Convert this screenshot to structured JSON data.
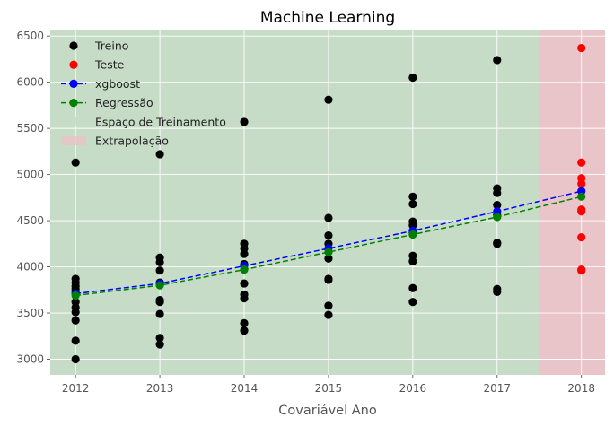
{
  "chart_data": {
    "type": "scatter",
    "title": "Machine Learning",
    "xlabel": "Covariável Ano",
    "ylabel": "",
    "xlim": [
      2011.7,
      2018.28
    ],
    "ylim": [
      2830,
      6560
    ],
    "xticks": [
      2012,
      2013,
      2014,
      2015,
      2016,
      2017,
      2018
    ],
    "yticks": [
      3000,
      3500,
      4000,
      4500,
      5000,
      5500,
      6000,
      6500
    ],
    "grid": true,
    "legend_position": "top-left",
    "colors": {
      "train": "#000000",
      "test": "#ff0000",
      "xgboost": "#0000ff",
      "regression": "#008000",
      "train_region": "#c6dcc6",
      "extrapolation_region": "#e9c4c8",
      "plot_background": "#e5e5e5",
      "grid": "#ffffff"
    },
    "regions": [
      {
        "name": "Espaço de Treinamento",
        "x_from": 2011.7,
        "x_to": 2017.5,
        "color": "#c6dcc6"
      },
      {
        "name": "Extrapolação",
        "x_from": 2017.5,
        "x_to": 2018.28,
        "color": "#e9c4c8"
      }
    ],
    "series": [
      {
        "name": "Treino",
        "style": "points",
        "color": "#000000",
        "points": [
          [
            2012,
            5130
          ],
          [
            2012,
            3870
          ],
          [
            2012,
            3830
          ],
          [
            2012,
            3790
          ],
          [
            2012,
            3760
          ],
          [
            2012,
            3730
          ],
          [
            2012,
            3620
          ],
          [
            2012,
            3560
          ],
          [
            2012,
            3510
          ],
          [
            2012,
            3420
          ],
          [
            2012,
            3200
          ],
          [
            2012,
            3000
          ],
          [
            2013,
            5220
          ],
          [
            2013,
            4100
          ],
          [
            2013,
            4050
          ],
          [
            2013,
            3960
          ],
          [
            2013,
            3830
          ],
          [
            2013,
            3640
          ],
          [
            2013,
            3620
          ],
          [
            2013,
            3490
          ],
          [
            2013,
            3230
          ],
          [
            2013,
            3160
          ],
          [
            2014,
            5570
          ],
          [
            2014,
            4250
          ],
          [
            2014,
            4200
          ],
          [
            2014,
            4140
          ],
          [
            2014,
            4030
          ],
          [
            2014,
            3820
          ],
          [
            2014,
            3700
          ],
          [
            2014,
            3660
          ],
          [
            2014,
            3390
          ],
          [
            2014,
            3310
          ],
          [
            2015,
            5810
          ],
          [
            2015,
            4530
          ],
          [
            2015,
            4340
          ],
          [
            2015,
            4250
          ],
          [
            2015,
            4090
          ],
          [
            2015,
            3870
          ],
          [
            2015,
            3860
          ],
          [
            2015,
            3580
          ],
          [
            2015,
            3480
          ],
          [
            2016,
            6050
          ],
          [
            2016,
            4760
          ],
          [
            2016,
            4680
          ],
          [
            2016,
            4490
          ],
          [
            2016,
            4450
          ],
          [
            2016,
            4370
          ],
          [
            2016,
            4120
          ],
          [
            2016,
            4060
          ],
          [
            2016,
            3770
          ],
          [
            2016,
            3620
          ],
          [
            2017,
            6240
          ],
          [
            2017,
            4850
          ],
          [
            2017,
            4800
          ],
          [
            2017,
            4670
          ],
          [
            2017,
            4560
          ],
          [
            2017,
            4260
          ],
          [
            2017,
            4250
          ],
          [
            2017,
            3760
          ],
          [
            2017,
            3730
          ]
        ]
      },
      {
        "name": "Teste",
        "style": "points",
        "color": "#ff0000",
        "points": [
          [
            2018,
            6370
          ],
          [
            2018,
            5130
          ],
          [
            2018,
            4960
          ],
          [
            2018,
            4900
          ],
          [
            2018,
            4620
          ],
          [
            2018,
            4600
          ],
          [
            2018,
            4320
          ],
          [
            2018,
            3970
          ],
          [
            2018,
            3960
          ]
        ]
      },
      {
        "name": "xgboost",
        "style": "dashed-line-markers",
        "color": "#0000ff",
        "x": [
          2012,
          2013,
          2014,
          2015,
          2016,
          2017,
          2018
        ],
        "y": [
          3710,
          3820,
          4010,
          4200,
          4390,
          4600,
          4820
        ]
      },
      {
        "name": "Regressão",
        "style": "dashed-line-markers",
        "color": "#008000",
        "x": [
          2012,
          2013,
          2014,
          2015,
          2016,
          2017,
          2018
        ],
        "y": [
          3690,
          3800,
          3970,
          4160,
          4350,
          4540,
          4760
        ]
      }
    ],
    "legend": [
      {
        "label": "Treino",
        "kind": "marker",
        "color": "#000000"
      },
      {
        "label": "Teste",
        "kind": "marker",
        "color": "#ff0000"
      },
      {
        "label": "xgboost",
        "kind": "line-marker",
        "color": "#0000ff"
      },
      {
        "label": "Regressão",
        "kind": "line-marker",
        "color": "#008000"
      },
      {
        "label": "Espaço de Treinamento",
        "kind": "patch",
        "color": "#c6dcc6"
      },
      {
        "label": "Extrapolação",
        "kind": "patch",
        "color": "#e9c4c8"
      }
    ]
  }
}
